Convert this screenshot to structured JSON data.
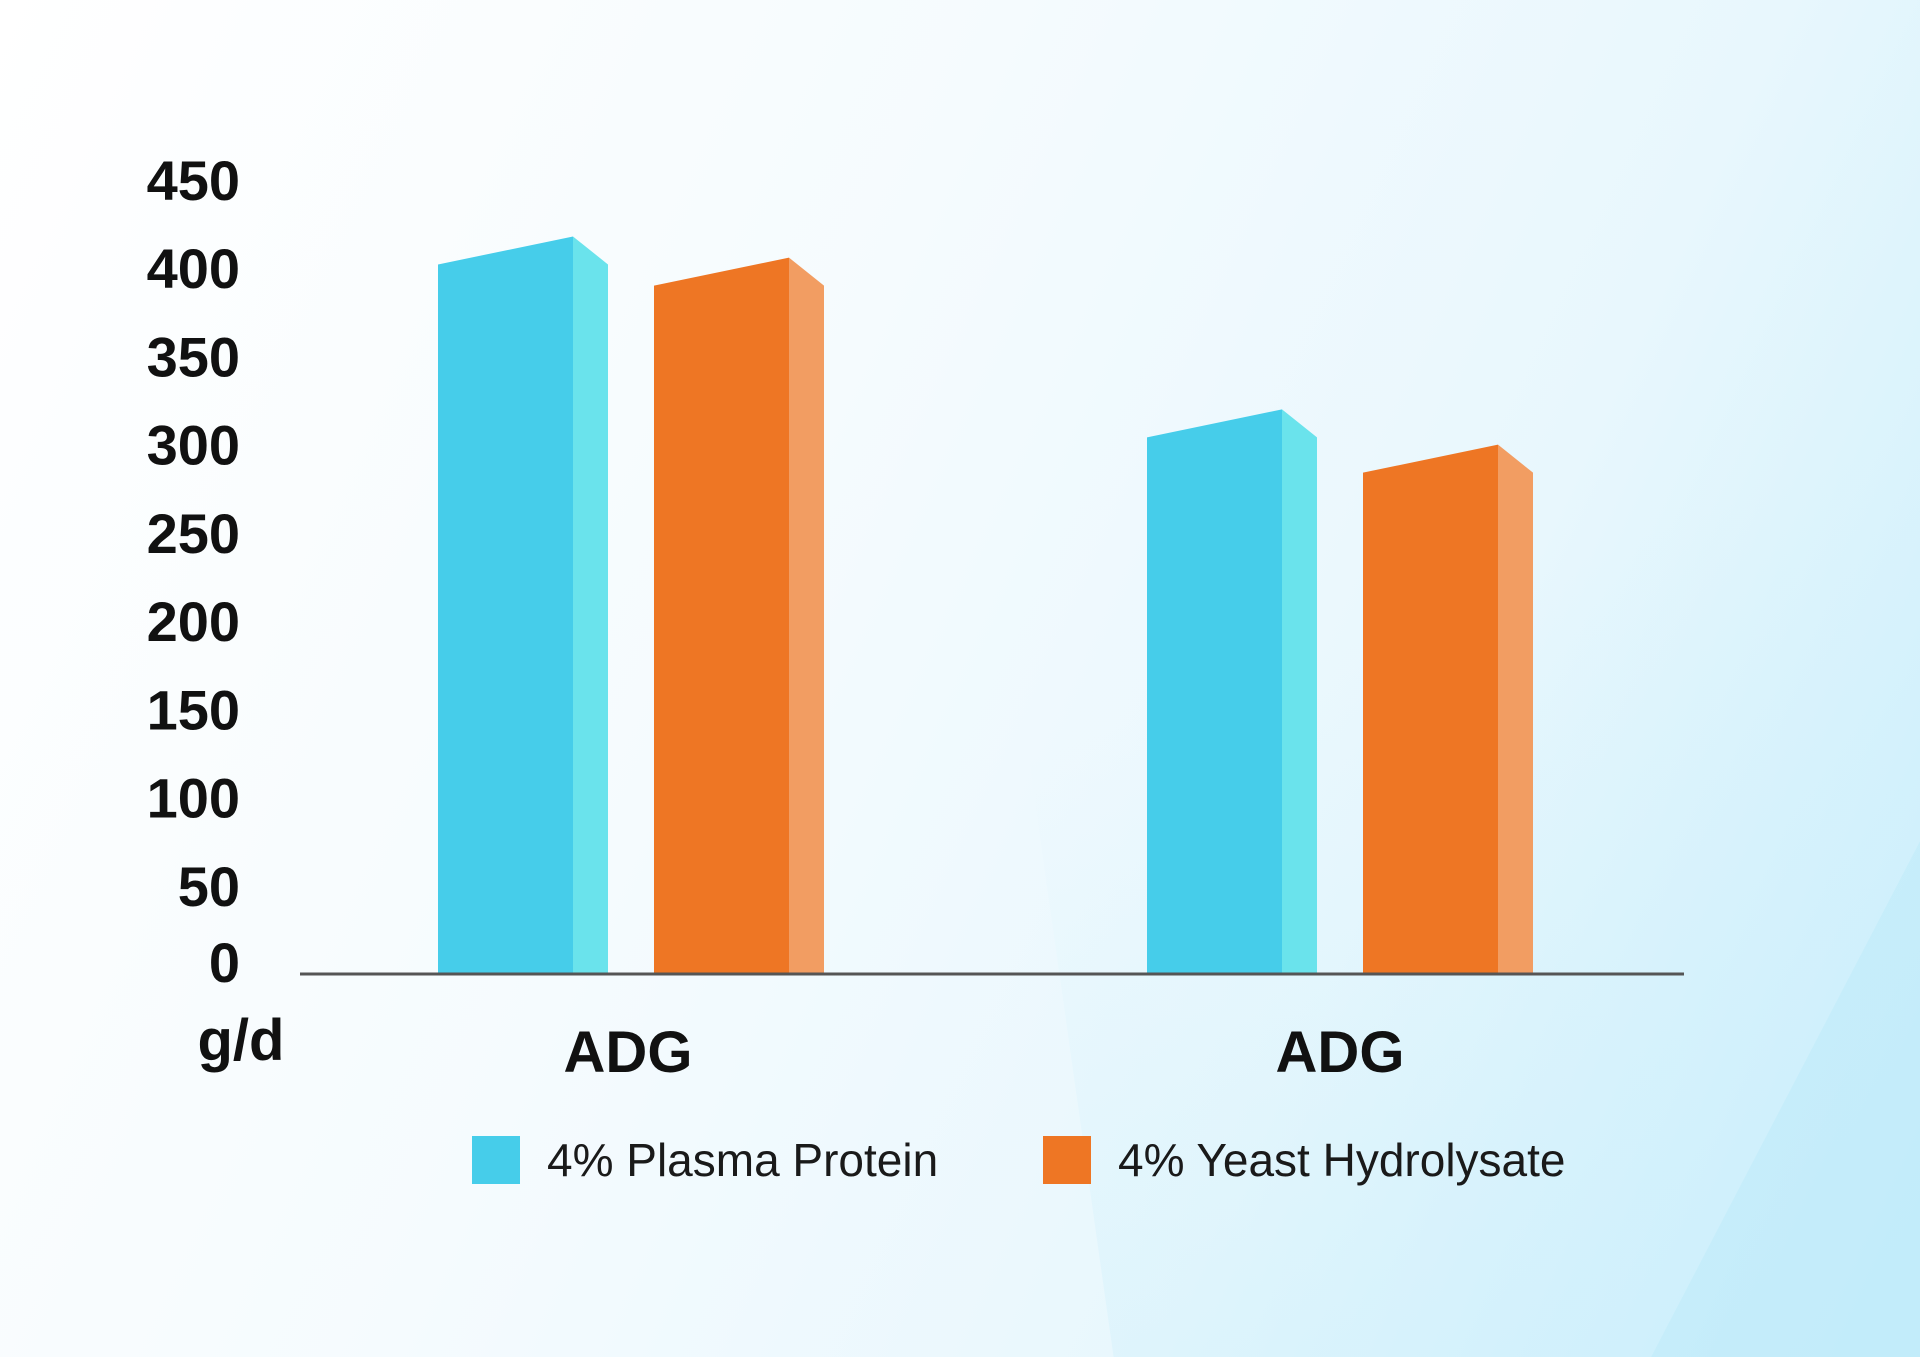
{
  "chart_data": {
    "type": "bar",
    "categories": [
      "ADG",
      "ADG"
    ],
    "series": [
      {
        "name": "4% Plasma Protein",
        "values": [
          418,
          320
        ],
        "color": "#46CDEA",
        "side_color": "#6AE3EC"
      },
      {
        "name": "4% Yeast Hydrolysate",
        "values": [
          406,
          300
        ],
        "color": "#EE7624",
        "side_color": "#F29D62"
      }
    ],
    "ylim": [
      0,
      450
    ],
    "yticks": [
      "0",
      "50",
      "100",
      "150",
      "200",
      "250",
      "300",
      "350",
      "400",
      "450"
    ],
    "unit_label": "g/d",
    "legend_position": "bottom",
    "grid": false
  }
}
